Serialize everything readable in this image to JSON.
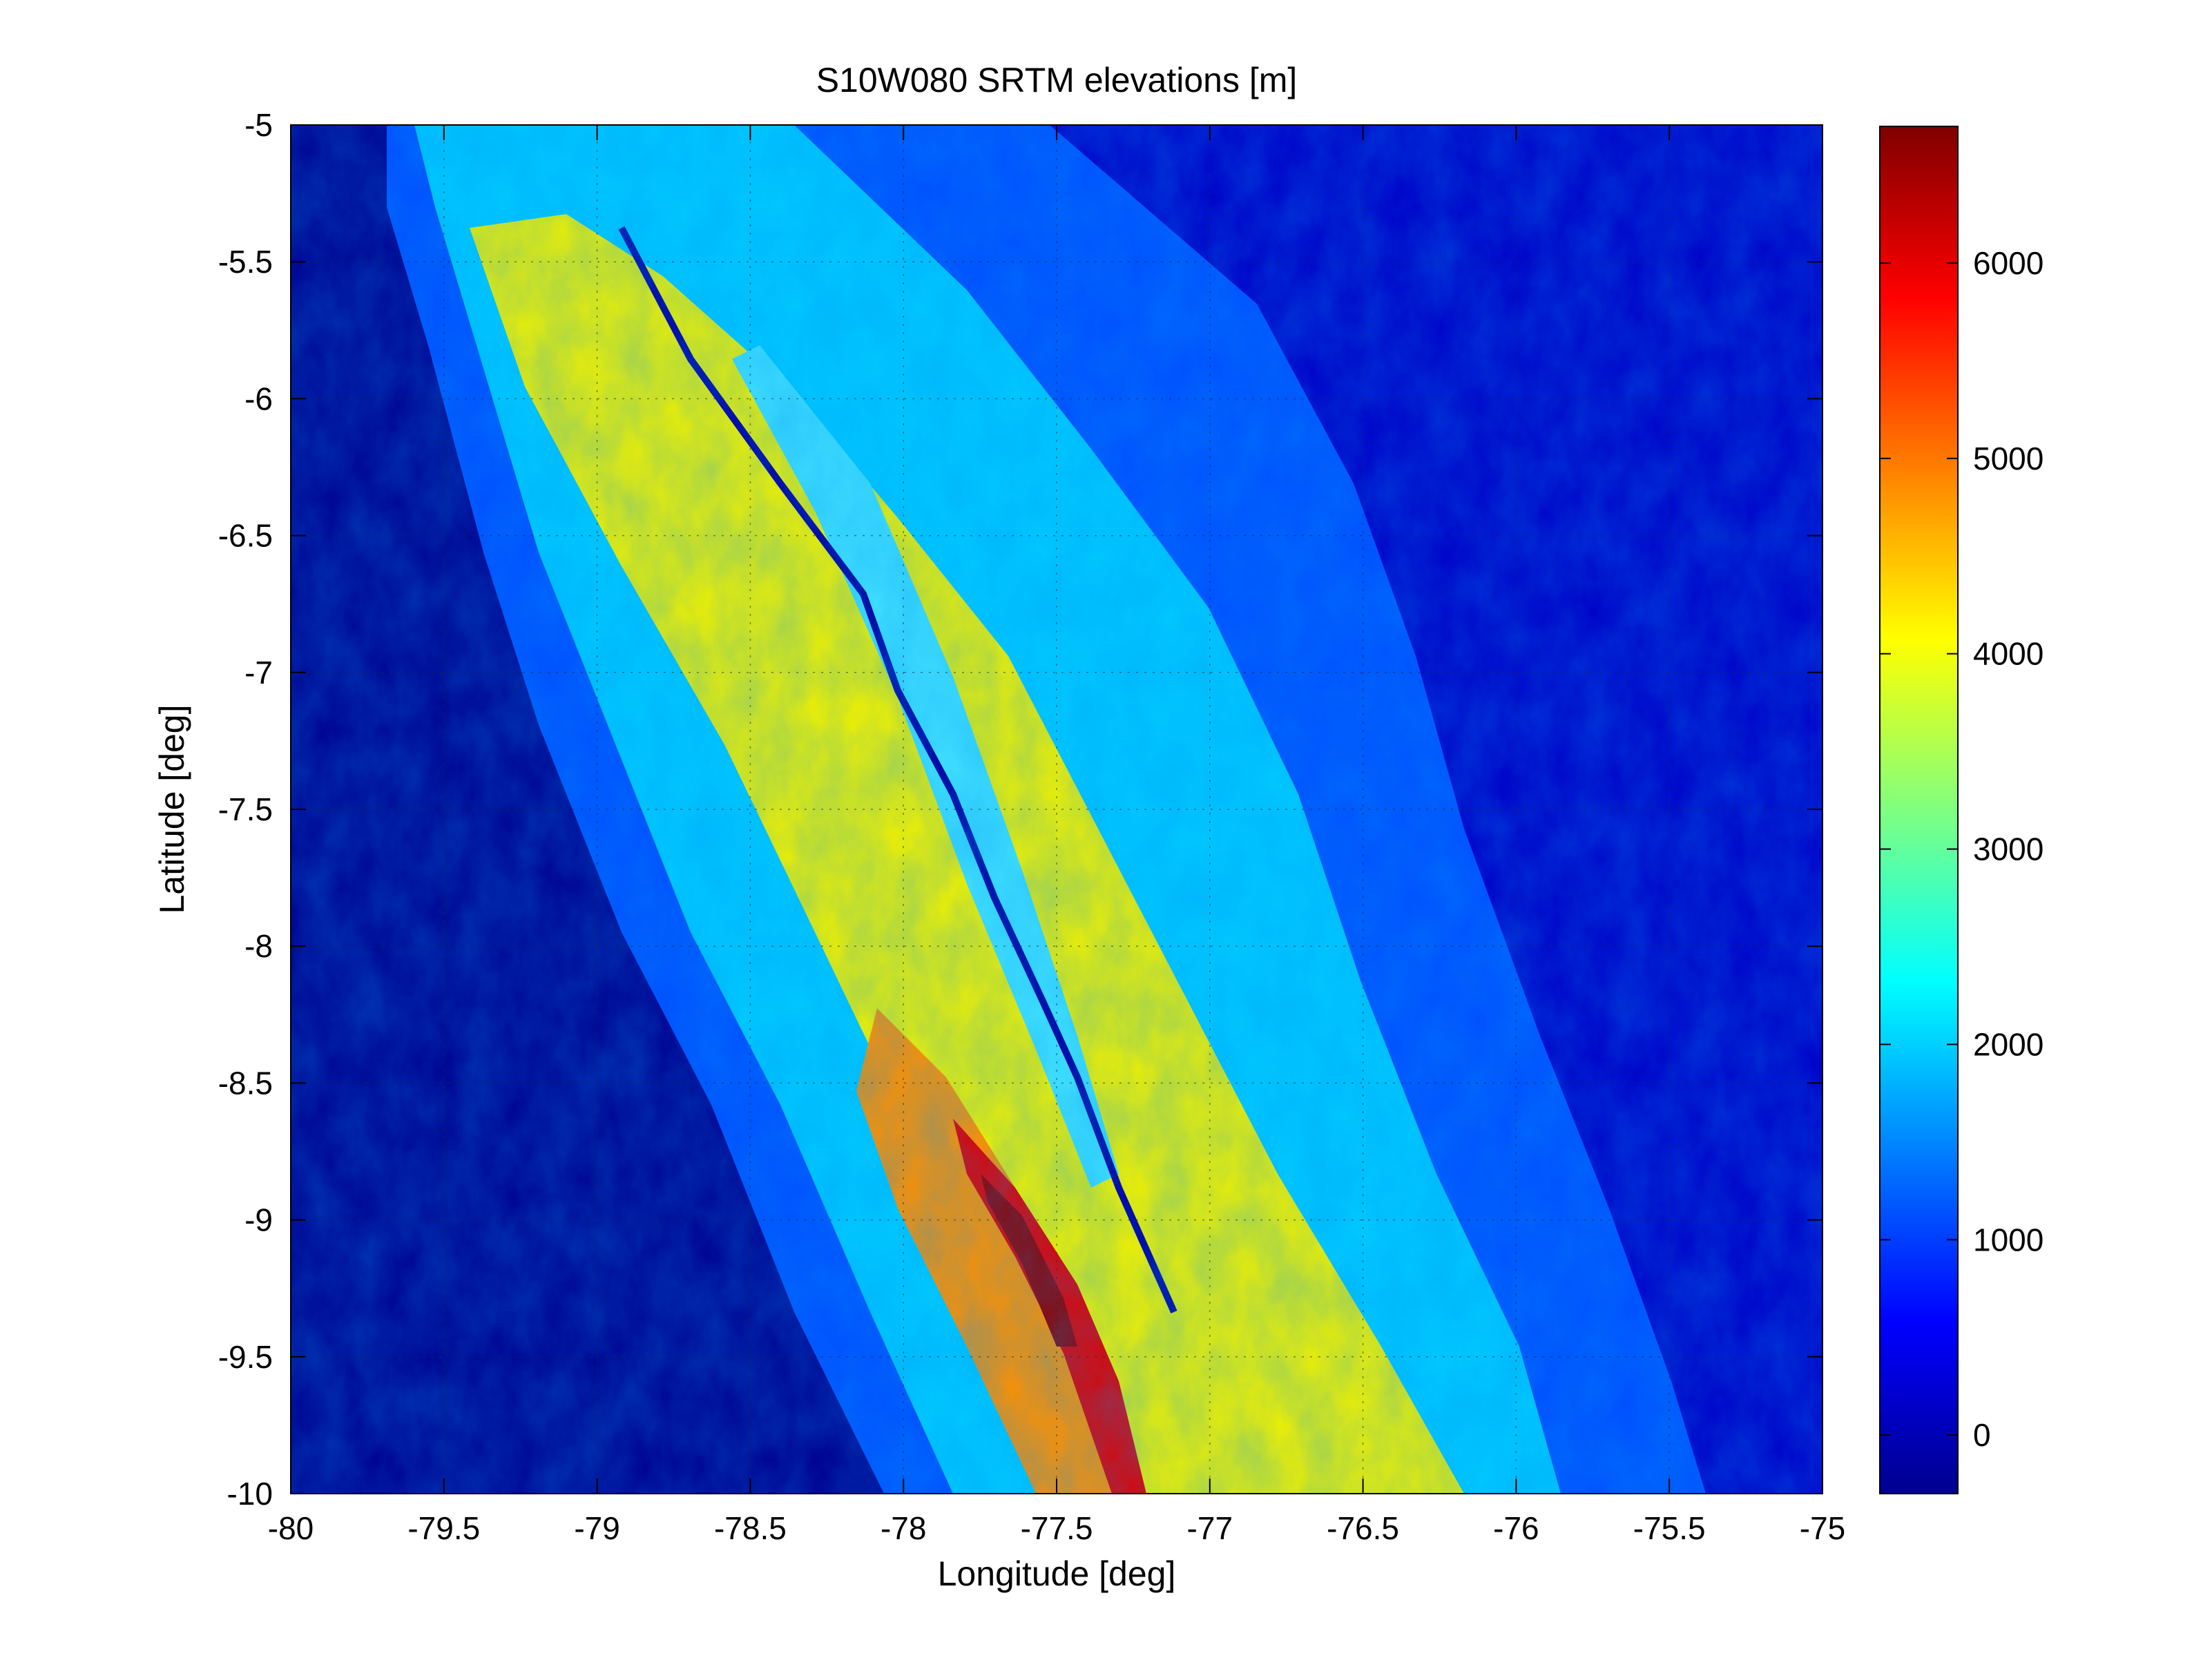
{
  "chart_data": {
    "type": "heatmap",
    "title": "S10W080 SRTM elevations [m]",
    "xlabel": "Longitude [deg]",
    "ylabel": "Latitude [deg]",
    "xlim": [
      -80,
      -75
    ],
    "ylim": [
      -10,
      -5
    ],
    "xticks": [
      "-80",
      "-79.5",
      "-79",
      "-78.5",
      "-78",
      "-77.5",
      "-77",
      "-76.5",
      "-76",
      "-75.5",
      "-75"
    ],
    "yticks": [
      "-5",
      "-5.5",
      "-6",
      "-6.5",
      "-7",
      "-7.5",
      "-8",
      "-8.5",
      "-9",
      "-9.5",
      "-10"
    ],
    "grid": true,
    "colormap": "jet",
    "colorbar": {
      "range": [
        -300,
        6700
      ],
      "ticks": [
        "0",
        "1000",
        "2000",
        "3000",
        "4000",
        "5000",
        "6000"
      ]
    },
    "colors": {
      "ocean": "#00008f",
      "max": "#800000"
    }
  }
}
